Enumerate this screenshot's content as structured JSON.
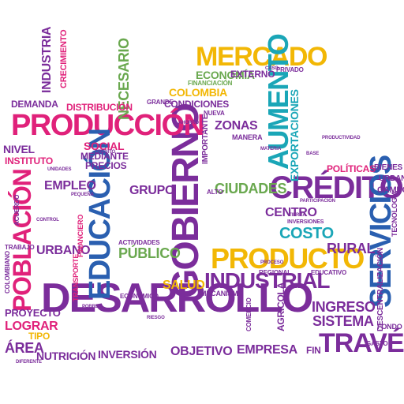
{
  "palette": {
    "purple": "#7b2d9b",
    "magenta": "#e0217a",
    "teal": "#1aa6b7",
    "blue": "#2a5fb0",
    "yellow": "#f2b705",
    "green": "#6aa84f",
    "orange": "#e8731a"
  },
  "words": [
    {
      "id": "desarrollo",
      "text": "DESARROLLO"
    },
    {
      "id": "gobierno",
      "text": "GOBIERNO"
    },
    {
      "id": "produccion",
      "text": "PRODUCCIÓN"
    },
    {
      "id": "producto",
      "text": "PRODUCTO"
    },
    {
      "id": "industrial",
      "text": "INDUSTRIAL"
    },
    {
      "id": "credito",
      "text": "CRÉDITO"
    },
    {
      "id": "servicios",
      "text": "SERVICIOS"
    },
    {
      "id": "educacion",
      "text": "EDUCACIÓN"
    },
    {
      "id": "poblacion",
      "text": "POBLACIÓN"
    },
    {
      "id": "mercado",
      "text": "MERCADO"
    },
    {
      "id": "traves",
      "text": "TRAVÉS"
    },
    {
      "id": "aumento",
      "text": "AUMENTO"
    },
    {
      "id": "exportaciones",
      "text": "EXPORTACIONES"
    },
    {
      "id": "costo",
      "text": "COSTO"
    },
    {
      "id": "ciudades",
      "text": "CIUDADES"
    },
    {
      "id": "industria",
      "text": "INDUSTRIA"
    },
    {
      "id": "necesario",
      "text": "NECESARIO"
    },
    {
      "id": "publico",
      "text": "PÚBLICO"
    },
    {
      "id": "rural",
      "text": "RURAL"
    },
    {
      "id": "ingreso",
      "text": "INGRESO"
    },
    {
      "id": "sistema",
      "text": "SISTEMA"
    },
    {
      "id": "centro",
      "text": "CENTRO"
    },
    {
      "id": "salud",
      "text": "SALUD"
    },
    {
      "id": "empleo",
      "text": "EMPLEO"
    },
    {
      "id": "grupo",
      "text": "GRUPO"
    },
    {
      "id": "urbano",
      "text": "URBANO"
    },
    {
      "id": "empresa",
      "text": "EMPRESA"
    },
    {
      "id": "inversion",
      "text": "INVERSIÓN"
    },
    {
      "id": "nutricion",
      "text": "NUTRICIÓN"
    },
    {
      "id": "objetivo",
      "text": "OBJETIVO"
    },
    {
      "id": "area",
      "text": "ÁREA"
    },
    {
      "id": "lograr",
      "text": "LOGRAR"
    },
    {
      "id": "proyecto",
      "text": "PROYECTO"
    },
    {
      "id": "zonas",
      "text": "ZONAS"
    },
    {
      "id": "economia",
      "text": "ECONOMÍA"
    },
    {
      "id": "externo",
      "text": "EXTERNO"
    },
    {
      "id": "colombia",
      "text": "COLOMBIA"
    },
    {
      "id": "condiciones",
      "text": "CONDICIONES"
    },
    {
      "id": "distribucion",
      "text": "DISTRIBUCIÓN"
    },
    {
      "id": "demanda",
      "text": "DEMANDA"
    },
    {
      "id": "nivel",
      "text": "NIVEL"
    },
    {
      "id": "instituto",
      "text": "INSTITUTO"
    },
    {
      "id": "social",
      "text": "SOCIAL"
    },
    {
      "id": "mediante",
      "text": "MEDIANTE"
    },
    {
      "id": "precios",
      "text": "PRECIOS"
    },
    {
      "id": "politicas",
      "text": "POLÍTICAS"
    },
    {
      "id": "bienes",
      "text": "BIENES"
    },
    {
      "id": "urbana",
      "text": "URBANA"
    },
    {
      "id": "campo",
      "text": "CAMPO"
    },
    {
      "id": "crecimiento",
      "text": "CRECIMIENTO"
    },
    {
      "id": "fin",
      "text": "FIN"
    },
    {
      "id": "tipo",
      "text": "TIPO"
    },
    {
      "id": "agricola",
      "text": "AGRÍCOLA"
    },
    {
      "id": "importante",
      "text": "IMPORTANTE"
    },
    {
      "id": "descentralizacion",
      "text": "DESCENTRALIZACIÓN"
    },
    {
      "id": "tecnologia",
      "text": "TECNOLOGÍA"
    },
    {
      "id": "financiero",
      "text": "FINANCIERO"
    },
    {
      "id": "transporte",
      "text": "TRANSPORTE"
    },
    {
      "id": "actividades",
      "text": "ACTIVIDADES"
    },
    {
      "id": "mecanismo",
      "text": "MECANISMO"
    },
    {
      "id": "regional",
      "text": "REGIONAL"
    },
    {
      "id": "privado",
      "text": "PRIVADO"
    },
    {
      "id": "financiacion",
      "text": "FINANCIACIÓN"
    },
    {
      "id": "grande",
      "text": "GRANDE"
    },
    {
      "id": "manera",
      "text": "MANERA"
    },
    {
      "id": "nueva",
      "text": "NUEVA"
    },
    {
      "id": "alto",
      "text": "ALTO"
    },
    {
      "id": "educativo",
      "text": "EDUCATIVO"
    },
    {
      "id": "economico",
      "text": "ECONÓMICO"
    },
    {
      "id": "colombiano",
      "text": "COLOMBIANO"
    },
    {
      "id": "trabajo",
      "text": "TRABAJO"
    },
    {
      "id": "acuerdo",
      "text": "ACUERDO"
    },
    {
      "id": "gasto",
      "text": "GASTO"
    },
    {
      "id": "fondo",
      "text": "FONDO"
    },
    {
      "id": "comercio",
      "text": "COMERCIO"
    },
    {
      "id": "productividad",
      "text": "PRODUCTIVIDAD"
    },
    {
      "id": "inversiones",
      "text": "INVERSIONES"
    },
    {
      "id": "tierra",
      "text": "TIERRA"
    },
    {
      "id": "ahorro",
      "text": "AHORRO"
    },
    {
      "id": "proceso",
      "text": "PROCESO"
    },
    {
      "id": "unidades",
      "text": "UNIDADES"
    },
    {
      "id": "participacion",
      "text": "PARTICIPACIÓN"
    },
    {
      "id": "diferente",
      "text": "DIFERENTE"
    },
    {
      "id": "control",
      "text": "CONTROL"
    },
    {
      "id": "pequena",
      "text": "PEQUEÑA"
    },
    {
      "id": "pobre",
      "text": "POBRE"
    },
    {
      "id": "credito2",
      "text": "CRÉDITO"
    },
    {
      "id": "riesgo",
      "text": "RIESGO"
    },
    {
      "id": "materia",
      "text": "MATERIA"
    },
    {
      "id": "caso",
      "text": "CASO"
    },
    {
      "id": "base",
      "text": "BASE"
    }
  ]
}
